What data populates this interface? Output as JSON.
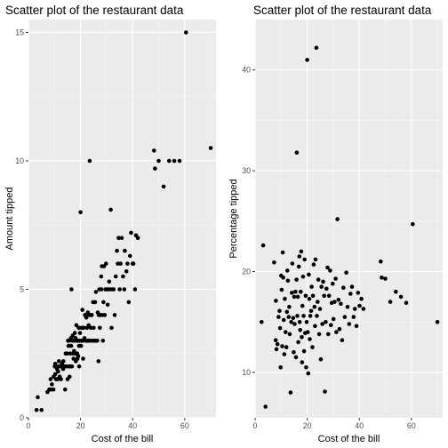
{
  "chart_data": [
    {
      "type": "scatter",
      "title": "Scatter plot of the restaurant data",
      "xlabel": "Cost of the bill",
      "ylabel": "Amount tipped",
      "xlim": [
        0,
        72
      ],
      "ylim": [
        0,
        15.5
      ],
      "xticks": [
        0,
        20,
        40,
        60
      ],
      "yticks": [
        0,
        5,
        10,
        15
      ],
      "grid": true,
      "point_color": "#000000",
      "panel_color": "#ebebeb",
      "points": [
        [
          3.1,
          0.3
        ],
        [
          5.0,
          0.3
        ],
        [
          3.6,
          0.8
        ],
        [
          7.3,
          1.0
        ],
        [
          8.0,
          1.1
        ],
        [
          8.6,
          1.1
        ],
        [
          9.6,
          1.1
        ],
        [
          8.5,
          1.5
        ],
        [
          9.0,
          1.3
        ],
        [
          9.7,
          1.6
        ],
        [
          10.3,
          1.7
        ],
        [
          10.6,
          1.5
        ],
        [
          10.1,
          2.0
        ],
        [
          10.3,
          2.1
        ],
        [
          11.0,
          1.9
        ],
        [
          11.2,
          1.5
        ],
        [
          11.4,
          1.8
        ],
        [
          11.6,
          2.0
        ],
        [
          11.7,
          2.2
        ],
        [
          12.0,
          1.6
        ],
        [
          12.4,
          2.0
        ],
        [
          12.5,
          1.5
        ],
        [
          12.7,
          2.0
        ],
        [
          12.9,
          2.1
        ],
        [
          13.0,
          2.0
        ],
        [
          13.3,
          1.9
        ],
        [
          13.4,
          2.2
        ],
        [
          13.8,
          2.0
        ],
        [
          14.1,
          1.1
        ],
        [
          14.3,
          2.5
        ],
        [
          14.5,
          2.0
        ],
        [
          14.8,
          2.5
        ],
        [
          15.0,
          1.5
        ],
        [
          15.2,
          3.0
        ],
        [
          15.4,
          2.8
        ],
        [
          15.5,
          2.0
        ],
        [
          15.7,
          3.0
        ],
        [
          15.8,
          1.6
        ],
        [
          16.0,
          2.5
        ],
        [
          16.2,
          2.0
        ],
        [
          16.3,
          3.1
        ],
        [
          16.4,
          2.8
        ],
        [
          16.5,
          5.0
        ],
        [
          16.7,
          2.0
        ],
        [
          16.9,
          3.0
        ],
        [
          17.0,
          3.2
        ],
        [
          17.1,
          2.5
        ],
        [
          17.3,
          2.3
        ],
        [
          17.5,
          2.6
        ],
        [
          17.6,
          3.0
        ],
        [
          17.8,
          3.3
        ],
        [
          18.0,
          2.5
        ],
        [
          18.1,
          3.1
        ],
        [
          18.2,
          2.2
        ],
        [
          18.4,
          3.6
        ],
        [
          18.5,
          3.0
        ],
        [
          18.7,
          2.5
        ],
        [
          18.8,
          2.3
        ],
        [
          19.0,
          3.0
        ],
        [
          19.1,
          2.4
        ],
        [
          19.3,
          3.5
        ],
        [
          19.4,
          2.8
        ],
        [
          19.5,
          2.0
        ],
        [
          19.7,
          3.0
        ],
        [
          19.8,
          3.3
        ],
        [
          20.0,
          8.0
        ],
        [
          20.1,
          3.0
        ],
        [
          20.2,
          2.8
        ],
        [
          20.3,
          3.5
        ],
        [
          20.5,
          3.0
        ],
        [
          20.7,
          4.2
        ],
        [
          20.9,
          3.0
        ],
        [
          21.0,
          3.5
        ],
        [
          21.0,
          2.3
        ],
        [
          21.2,
          3.5
        ],
        [
          21.5,
          3.1
        ],
        [
          21.7,
          4.0
        ],
        [
          22.0,
          3.0
        ],
        [
          22.2,
          3.9
        ],
        [
          22.4,
          3.0
        ],
        [
          22.5,
          3.5
        ],
        [
          22.8,
          4.1
        ],
        [
          23.0,
          3.0
        ],
        [
          23.1,
          3.6
        ],
        [
          23.3,
          4.0
        ],
        [
          23.5,
          10.0
        ],
        [
          23.7,
          3.0
        ],
        [
          23.9,
          4.0
        ],
        [
          24.0,
          3.5
        ],
        [
          24.3,
          4.0
        ],
        [
          24.6,
          3.0
        ],
        [
          24.8,
          4.5
        ],
        [
          25.0,
          3.5
        ],
        [
          25.3,
          3.0
        ],
        [
          25.6,
          4.5
        ],
        [
          25.9,
          4.9
        ],
        [
          26.0,
          3.0
        ],
        [
          26.4,
          3.0
        ],
        [
          26.6,
          4.1
        ],
        [
          26.9,
          2.2
        ],
        [
          27.0,
          4.0
        ],
        [
          27.2,
          5.0
        ],
        [
          27.4,
          3.5
        ],
        [
          27.6,
          4.0
        ],
        [
          27.9,
          5.5
        ],
        [
          28.0,
          5.0
        ],
        [
          28.2,
          5.9
        ],
        [
          28.4,
          4.0
        ],
        [
          28.6,
          3.0
        ],
        [
          28.8,
          4.5
        ],
        [
          29.0,
          5.9
        ],
        [
          29.3,
          4.0
        ],
        [
          29.6,
          5.0
        ],
        [
          29.8,
          6.0
        ],
        [
          30.0,
          5.0
        ],
        [
          30.4,
          4.4
        ],
        [
          30.7,
          5.0
        ],
        [
          31.0,
          5.3
        ],
        [
          31.3,
          5.0
        ],
        [
          31.6,
          8.1
        ],
        [
          31.9,
          3.5
        ],
        [
          32.2,
          5.0
        ],
        [
          32.7,
          5.0
        ],
        [
          33.1,
          4.0
        ],
        [
          33.5,
          5.5
        ],
        [
          34.0,
          6.5
        ],
        [
          34.3,
          6.0
        ],
        [
          34.6,
          7.0
        ],
        [
          35.0,
          5.0
        ],
        [
          35.4,
          6.0
        ],
        [
          35.8,
          7.0
        ],
        [
          36.3,
          5.5
        ],
        [
          36.8,
          5.0
        ],
        [
          37.0,
          6.5
        ],
        [
          37.6,
          5.7
        ],
        [
          38.0,
          6.0
        ],
        [
          38.5,
          4.5
        ],
        [
          39.0,
          6.3
        ],
        [
          39.4,
          7.2
        ],
        [
          40.0,
          6.0
        ],
        [
          40.3,
          6.0
        ],
        [
          40.9,
          5.0
        ],
        [
          41.3,
          7.1
        ],
        [
          42.0,
          7.0
        ],
        [
          48.2,
          10.4
        ],
        [
          48.6,
          9.7
        ],
        [
          50.0,
          10.0
        ],
        [
          51.9,
          9.0
        ],
        [
          54.0,
          10.0
        ],
        [
          56.0,
          10.0
        ],
        [
          58.0,
          10.0
        ],
        [
          60.5,
          15.0
        ],
        [
          70.0,
          10.5
        ]
      ]
    },
    {
      "type": "scatter",
      "title": "Scatter plot of the restaurant data",
      "xlabel": "Cost of the bill",
      "ylabel": "Percentage tipped",
      "xlim": [
        0,
        72
      ],
      "ylim": [
        5.5,
        45
      ],
      "xticks": [
        0,
        20,
        40,
        60
      ],
      "yticks": [
        10,
        20,
        30,
        40
      ],
      "grid": true,
      "point_color": "#000000",
      "panel_color": "#ebebeb",
      "points": [
        [
          3.1,
          22.6
        ],
        [
          2.5,
          15.0
        ],
        [
          4.0,
          6.6
        ],
        [
          7.3,
          20.9
        ],
        [
          7.9,
          13.2
        ],
        [
          8.0,
          17.1
        ],
        [
          8.2,
          12.3
        ],
        [
          8.6,
          12.8
        ],
        [
          9.0,
          15.5
        ],
        [
          9.4,
          16.1
        ],
        [
          9.6,
          14.4
        ],
        [
          9.8,
          10.5
        ],
        [
          10.0,
          19.6
        ],
        [
          10.2,
          18.2
        ],
        [
          10.4,
          12.6
        ],
        [
          10.6,
          21.9
        ],
        [
          10.8,
          19.4
        ],
        [
          11.0,
          15.2
        ],
        [
          11.2,
          11.8
        ],
        [
          11.4,
          17.3
        ],
        [
          11.7,
          14.0
        ],
        [
          12.0,
          12.5
        ],
        [
          12.2,
          16.0
        ],
        [
          12.4,
          20.1
        ],
        [
          12.6,
          19.1
        ],
        [
          12.9,
          15.5
        ],
        [
          13.1,
          16.5
        ],
        [
          13.3,
          13.8
        ],
        [
          13.6,
          8.0
        ],
        [
          13.9,
          15.0
        ],
        [
          14.1,
          17.9
        ],
        [
          14.3,
          20.8
        ],
        [
          14.6,
          15.4
        ],
        [
          14.8,
          12.0
        ],
        [
          15.0,
          17.5
        ],
        [
          15.2,
          14.8
        ],
        [
          15.5,
          18.0
        ],
        [
          15.7,
          11.5
        ],
        [
          15.9,
          19.2
        ],
        [
          16.0,
          31.8
        ],
        [
          16.2,
          15.6
        ],
        [
          16.4,
          17.5
        ],
        [
          16.6,
          13.0
        ],
        [
          16.8,
          20.5
        ],
        [
          17.0,
          21.5
        ],
        [
          17.1,
          15.0
        ],
        [
          17.3,
          14.2
        ],
        [
          17.5,
          18.0
        ],
        [
          17.7,
          22.0
        ],
        [
          17.9,
          13.5
        ],
        [
          18.0,
          11.0
        ],
        [
          18.2,
          16.6
        ],
        [
          18.4,
          19.5
        ],
        [
          18.6,
          15.6
        ],
        [
          18.8,
          12.1
        ],
        [
          19.0,
          21.2
        ],
        [
          19.2,
          13.9
        ],
        [
          19.4,
          17.6
        ],
        [
          19.6,
          10.5
        ],
        [
          19.8,
          15.0
        ],
        [
          20.0,
          41.0
        ],
        [
          20.2,
          14.0
        ],
        [
          20.4,
          9.9
        ],
        [
          20.6,
          19.7
        ],
        [
          20.8,
          17.3
        ],
        [
          21.0,
          13.3
        ],
        [
          21.2,
          15.6
        ],
        [
          21.5,
          16.1
        ],
        [
          21.7,
          18.5
        ],
        [
          22.0,
          12.5
        ],
        [
          22.2,
          17.6
        ],
        [
          22.5,
          20.7
        ],
        [
          22.8,
          16.5
        ],
        [
          23.0,
          14.6
        ],
        [
          23.2,
          21.2
        ],
        [
          23.5,
          42.2
        ],
        [
          23.7,
          15.6
        ],
        [
          24.0,
          17.0
        ],
        [
          24.3,
          19.2
        ],
        [
          24.6,
          13.8
        ],
        [
          24.9,
          16.3
        ],
        [
          25.2,
          11.3
        ],
        [
          25.5,
          18.5
        ],
        [
          25.8,
          14.8
        ],
        [
          26.1,
          19.0
        ],
        [
          26.5,
          17.6
        ],
        [
          26.8,
          8.1
        ],
        [
          27.1,
          15.0
        ],
        [
          27.4,
          18.3
        ],
        [
          27.8,
          20.4
        ],
        [
          28.1,
          13.8
        ],
        [
          28.4,
          17.6
        ],
        [
          28.8,
          20.1
        ],
        [
          29.1,
          14.7
        ],
        [
          29.4,
          16.9
        ],
        [
          29.8,
          18.8
        ],
        [
          30.1,
          15.3
        ],
        [
          30.5,
          17.0
        ],
        [
          30.9,
          19.3
        ],
        [
          31.2,
          14.0
        ],
        [
          31.6,
          25.2
        ],
        [
          32.0,
          17.2
        ],
        [
          32.4,
          14.3
        ],
        [
          32.9,
          16.8
        ],
        [
          33.4,
          13.2
        ],
        [
          33.9,
          18.4
        ],
        [
          34.4,
          15.5
        ],
        [
          35.0,
          19.9
        ],
        [
          35.5,
          16.5
        ],
        [
          36.1,
          14.8
        ],
        [
          36.6,
          17.8
        ],
        [
          37.2,
          18.5
        ],
        [
          37.8,
          15.5
        ],
        [
          38.3,
          16.3
        ],
        [
          38.9,
          14.6
        ],
        [
          39.5,
          17.9
        ],
        [
          40.1,
          16.6
        ],
        [
          40.8,
          17.3
        ],
        [
          41.6,
          16.3
        ],
        [
          48.2,
          21.0
        ],
        [
          48.6,
          19.4
        ],
        [
          50.0,
          19.3
        ],
        [
          51.9,
          17.0
        ],
        [
          54.0,
          18.0
        ],
        [
          56.0,
          17.5
        ],
        [
          58.0,
          16.9
        ],
        [
          60.5,
          24.7
        ],
        [
          70.0,
          15.0
        ]
      ]
    }
  ]
}
